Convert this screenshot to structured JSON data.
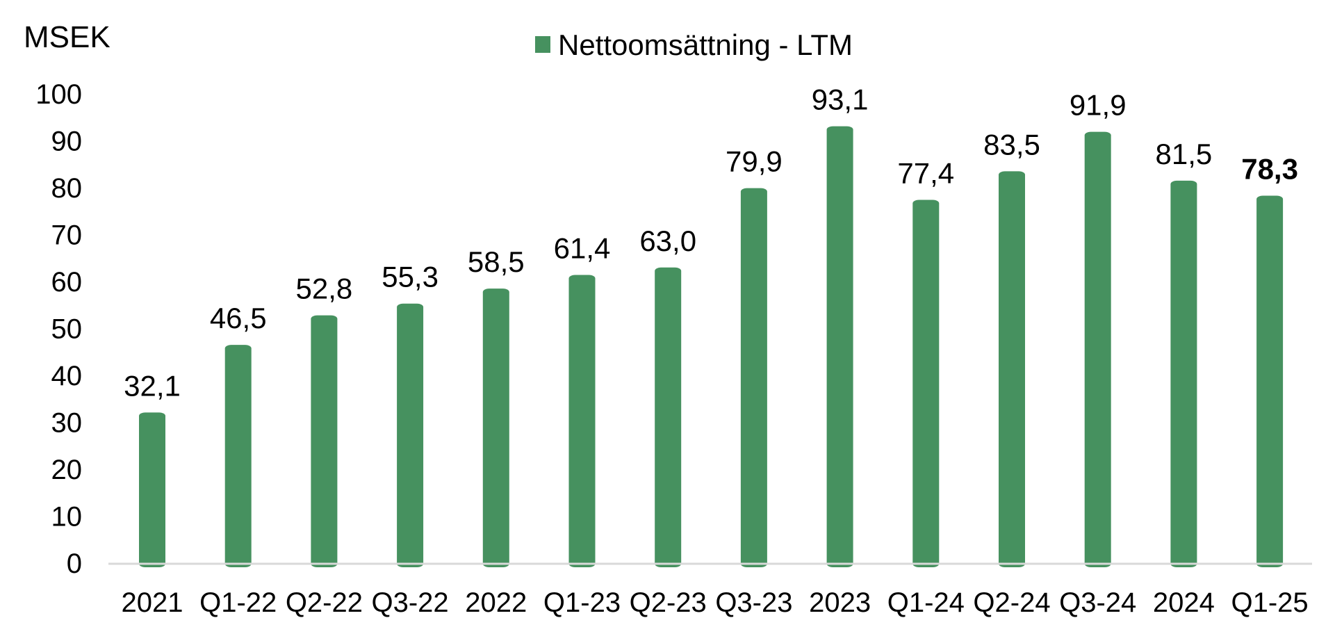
{
  "chart_data": {
    "type": "bar",
    "ylabel": "MSEK",
    "xlabel": "",
    "title": "",
    "ylim": [
      0,
      100
    ],
    "yticks": [
      0,
      10,
      20,
      30,
      40,
      50,
      60,
      70,
      80,
      90,
      100
    ],
    "grid": false,
    "legend": {
      "position": "top-center",
      "entries": [
        "Nettoomsättning - LTM"
      ]
    },
    "categories": [
      "2021",
      "Q1-22",
      "Q2-22",
      "Q3-22",
      "2022",
      "Q1-23",
      "Q2-23",
      "Q3-23",
      "2023",
      "Q1-24",
      "Q2-24",
      "Q3-24",
      "2024",
      "Q1-25"
    ],
    "series": [
      {
        "name": "Nettoomsättning - LTM",
        "color": "#46915F",
        "values": [
          32.1,
          46.5,
          52.8,
          55.3,
          58.5,
          61.4,
          63.0,
          79.9,
          93.1,
          77.4,
          83.5,
          91.9,
          81.5,
          78.3
        ],
        "labels": [
          "32,1",
          "46,5",
          "52,8",
          "55,3",
          "58,5",
          "61,4",
          "63,0",
          "79,9",
          "93,1",
          "77,4",
          "83,5",
          "91,9",
          "81,5",
          "78,3"
        ],
        "bold_label_index": 13
      }
    ],
    "axis_color": "#D9D9D9"
  }
}
